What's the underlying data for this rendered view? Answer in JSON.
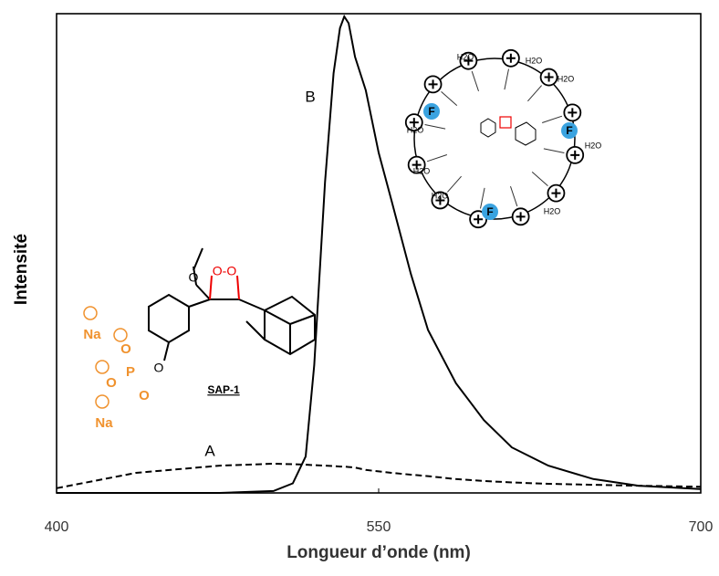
{
  "chart_data": {
    "type": "line",
    "xlabel": "Longueur d’onde (nm)",
    "ylabel": "Intensité",
    "x": [
      400,
      437,
      476,
      501,
      510,
      516,
      520,
      525,
      529,
      532,
      534,
      536,
      539,
      544,
      550,
      556,
      565,
      573,
      586,
      599,
      612,
      629,
      650,
      671,
      700
    ],
    "series": [
      {
        "name": "A",
        "color": "#000000",
        "dash": true,
        "values": [
          1,
          4.2,
          5.7,
          6.1,
          6.0,
          5.9,
          5.8,
          5.7,
          5.6,
          5.5,
          5.5,
          5.4,
          5.3,
          4.8,
          4.5,
          4.2,
          3.8,
          3.5,
          2.9,
          2.5,
          2.2,
          1.9,
          1.7,
          1.5,
          1.3
        ]
      },
      {
        "name": "B",
        "color": "#000000",
        "dash": false,
        "values": [
          0,
          0,
          0,
          0.4,
          2,
          7.6,
          26.7,
          64.8,
          87.6,
          97,
          99.4,
          98,
          91,
          84,
          71,
          61,
          45.7,
          34,
          22.9,
          15.2,
          9.5,
          5.7,
          2.9,
          1.5,
          0.8
        ]
      }
    ],
    "xlim": [
      400,
      700
    ],
    "xticks": [
      400,
      550,
      700
    ],
    "ylim": [
      0,
      100
    ],
    "sap1": {
      "label": "SAP-1",
      "peroxide": "O-O",
      "methoxy": "O",
      "phenol_o": "O",
      "phosphorus": "P",
      "phosphate_o": [
        "O",
        "O",
        "O"
      ],
      "sodium": [
        "Na",
        "Na"
      ]
    },
    "micelle": {
      "water": [
        "H2O",
        "H2O",
        "H2O",
        "H2O",
        "H2O",
        "H2O",
        "H2O",
        "H2O"
      ],
      "fluorophore": [
        "F",
        "F",
        "F"
      ]
    }
  }
}
